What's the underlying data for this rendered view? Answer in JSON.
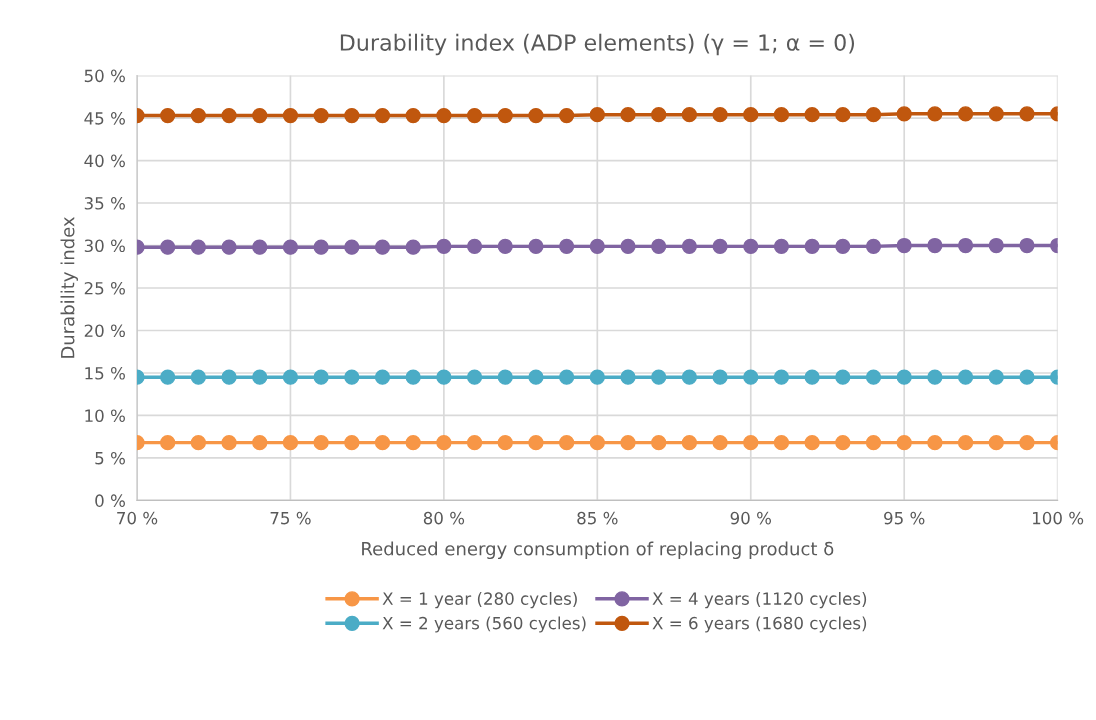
{
  "chart_data": {
    "type": "line",
    "title": "Durability index (ADP elements) (γ = 1; α = 0)",
    "xlabel": "Reduced energy consumption of replacing product δ",
    "ylabel": "Durability index",
    "x": [
      70,
      71,
      72,
      73,
      74,
      75,
      76,
      77,
      78,
      79,
      80,
      81,
      82,
      83,
      84,
      85,
      86,
      87,
      88,
      89,
      90,
      91,
      92,
      93,
      94,
      95,
      96,
      97,
      98,
      99,
      100
    ],
    "series": [
      {
        "name": "X = 1 year (280 cycles)",
        "color": "#f79646",
        "values": [
          6.8,
          6.8,
          6.8,
          6.8,
          6.8,
          6.8,
          6.8,
          6.8,
          6.8,
          6.8,
          6.8,
          6.8,
          6.8,
          6.8,
          6.8,
          6.8,
          6.8,
          6.8,
          6.8,
          6.8,
          6.8,
          6.8,
          6.8,
          6.8,
          6.8,
          6.8,
          6.8,
          6.8,
          6.8,
          6.8,
          6.8
        ]
      },
      {
        "name": "X = 2 years (560 cycles)",
        "color": "#4bacc6",
        "values": [
          14.5,
          14.5,
          14.5,
          14.5,
          14.5,
          14.5,
          14.5,
          14.5,
          14.5,
          14.5,
          14.5,
          14.5,
          14.5,
          14.5,
          14.5,
          14.5,
          14.5,
          14.5,
          14.5,
          14.5,
          14.5,
          14.5,
          14.5,
          14.5,
          14.5,
          14.5,
          14.5,
          14.5,
          14.5,
          14.5,
          14.5
        ]
      },
      {
        "name": "X = 4 years (1120 cycles)",
        "color": "#8064a2",
        "values": [
          29.8,
          29.8,
          29.8,
          29.8,
          29.8,
          29.8,
          29.8,
          29.8,
          29.8,
          29.8,
          29.9,
          29.9,
          29.9,
          29.9,
          29.9,
          29.9,
          29.9,
          29.9,
          29.9,
          29.9,
          29.9,
          29.9,
          29.9,
          29.9,
          29.9,
          30.0,
          30.0,
          30.0,
          30.0,
          30.0,
          30.0
        ]
      },
      {
        "name": "X = 6 years (1680 cycles)",
        "color": "#c0570e",
        "values": [
          45.3,
          45.3,
          45.3,
          45.3,
          45.3,
          45.3,
          45.3,
          45.3,
          45.3,
          45.3,
          45.3,
          45.3,
          45.3,
          45.3,
          45.3,
          45.4,
          45.4,
          45.4,
          45.4,
          45.4,
          45.4,
          45.4,
          45.4,
          45.4,
          45.4,
          45.5,
          45.5,
          45.5,
          45.5,
          45.5,
          45.5
        ]
      }
    ],
    "xlim": [
      70,
      100
    ],
    "ylim": [
      0,
      50
    ],
    "xticks": [
      {
        "value": 70,
        "label": "70 %"
      },
      {
        "value": 75,
        "label": "75 %"
      },
      {
        "value": 80,
        "label": "80 %"
      },
      {
        "value": 85,
        "label": "85 %"
      },
      {
        "value": 90,
        "label": "90 %"
      },
      {
        "value": 95,
        "label": "95 %"
      },
      {
        "value": 100,
        "label": "100 %"
      }
    ],
    "yticks": [
      {
        "value": 0,
        "label": "0 %"
      },
      {
        "value": 5,
        "label": "5 %"
      },
      {
        "value": 10,
        "label": "10 %"
      },
      {
        "value": 15,
        "label": "15 %"
      },
      {
        "value": 20,
        "label": "20 %"
      },
      {
        "value": 25,
        "label": "25 %"
      },
      {
        "value": 30,
        "label": "30 %"
      },
      {
        "value": 35,
        "label": "35 %"
      },
      {
        "value": 40,
        "label": "40 %"
      },
      {
        "value": 45,
        "label": "45 %"
      },
      {
        "value": 50,
        "label": "50 %"
      }
    ],
    "grid": true,
    "legend": "bottom",
    "marker": "circle",
    "line_style": "solid"
  }
}
